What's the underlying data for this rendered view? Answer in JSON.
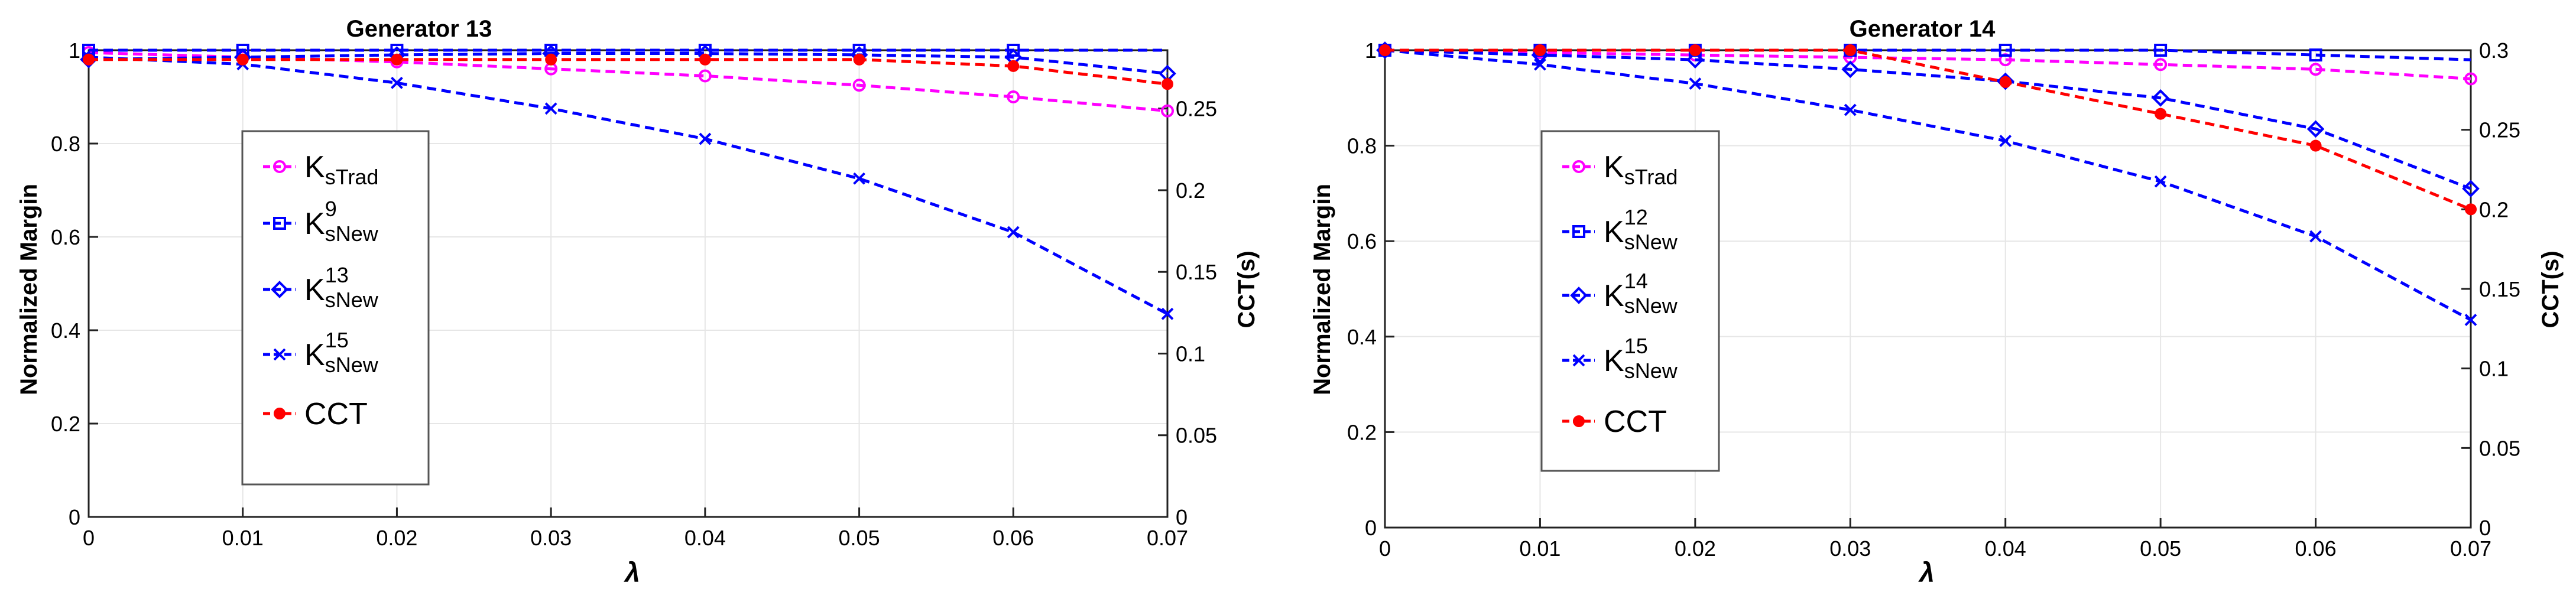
{
  "chart_data": [
    {
      "type": "line",
      "title": "Generator 13",
      "xlabel": "λ",
      "ylabel": "Normalized Margin",
      "y2label": "CCT(s)",
      "xlim": [
        0,
        0.07
      ],
      "ylim": [
        0,
        1
      ],
      "y2lim": [
        0,
        0.2857
      ],
      "x": [
        0,
        0.01,
        0.02,
        0.03,
        0.04,
        0.05,
        0.06,
        0.07
      ],
      "xticks": [
        "0",
        "0.01",
        "0.02",
        "0.03",
        "0.04",
        "0.05",
        "0.06",
        "0.07"
      ],
      "yticks": [
        "0",
        "0.2",
        "0.4",
        "0.6",
        "0.8",
        "1"
      ],
      "y2ticks": [
        "0",
        "0.05",
        "0.1",
        "0.15",
        "0.2",
        "0.25"
      ],
      "y2tick_values": [
        0,
        0.05,
        0.1,
        0.15,
        0.2,
        0.25
      ],
      "grid": true,
      "legend": "left",
      "series": [
        {
          "name": "KsTrad",
          "base": "K",
          "sub": "sTrad",
          "sup": "",
          "color": "#ff00ff",
          "marker": "circle",
          "axis": "left",
          "values": [
            0.995,
            0.985,
            0.975,
            0.96,
            0.945,
            0.925,
            0.9,
            0.87
          ]
        },
        {
          "name": "KsNew9",
          "base": "K",
          "sub": "sNew",
          "sup": "9",
          "color": "#0000ff",
          "marker": "square",
          "axis": "left",
          "values": [
            1.0,
            1.0,
            1.0,
            1.0,
            1.0,
            1.0,
            1.0,
            1.0
          ]
        },
        {
          "name": "KsNew13",
          "base": "K",
          "sub": "sNew",
          "sup": "13",
          "color": "#0000ff",
          "marker": "diamond",
          "axis": "left",
          "values": [
            0.98,
            0.985,
            0.99,
            0.993,
            0.993,
            0.99,
            0.985,
            0.95
          ]
        },
        {
          "name": "KsNew15",
          "base": "K",
          "sub": "sNew",
          "sup": "15",
          "color": "#0000ff",
          "marker": "x",
          "axis": "left",
          "values": [
            0.985,
            0.97,
            0.93,
            0.875,
            0.81,
            0.725,
            0.61,
            0.435
          ]
        },
        {
          "name": "CCT",
          "base": "CCT",
          "sub": "",
          "sup": "",
          "color": "#ff0000",
          "marker": "dot",
          "axis": "right",
          "values": [
            0.28,
            0.28,
            0.28,
            0.28,
            0.28,
            0.28,
            0.276,
            0.265
          ]
        }
      ]
    },
    {
      "type": "line",
      "title": "Generator 14",
      "xlabel": "λ",
      "ylabel": "Normalized Margin",
      "y2label": "CCT(s)",
      "xlim": [
        0,
        0.07
      ],
      "ylim": [
        0,
        1
      ],
      "y2lim": [
        0,
        0.3
      ],
      "x": [
        0,
        0.01,
        0.02,
        0.03,
        0.04,
        0.05,
        0.06,
        0.07
      ],
      "xticks": [
        "0",
        "0.01",
        "0.02",
        "0.03",
        "0.04",
        "0.05",
        "0.06",
        "0.07"
      ],
      "yticks": [
        "0",
        "0.2",
        "0.4",
        "0.6",
        "0.8",
        "1"
      ],
      "y2ticks": [
        "0",
        "0.05",
        "0.1",
        "0.15",
        "0.2",
        "0.25",
        "0.3"
      ],
      "y2tick_values": [
        0,
        0.05,
        0.1,
        0.15,
        0.2,
        0.25,
        0.3
      ],
      "grid": true,
      "legend": "left",
      "series": [
        {
          "name": "KsTrad",
          "base": "K",
          "sub": "sTrad",
          "sup": "",
          "color": "#ff00ff",
          "marker": "circle",
          "axis": "left",
          "values": [
            1.0,
            0.995,
            0.99,
            0.985,
            0.98,
            0.97,
            0.96,
            0.94
          ]
        },
        {
          "name": "KsNew12",
          "base": "K",
          "sub": "sNew",
          "sup": "12",
          "color": "#0000ff",
          "marker": "square",
          "axis": "left",
          "values": [
            1.0,
            1.0,
            1.0,
            1.0,
            1.0,
            1.0,
            0.99,
            0.98
          ]
        },
        {
          "name": "KsNew14",
          "base": "K",
          "sub": "sNew",
          "sup": "14",
          "color": "#0000ff",
          "marker": "diamond",
          "axis": "left",
          "values": [
            1.0,
            0.99,
            0.98,
            0.96,
            0.935,
            0.9,
            0.835,
            0.71
          ]
        },
        {
          "name": "KsNew15",
          "base": "K",
          "sub": "sNew",
          "sup": "15",
          "color": "#0000ff",
          "marker": "x",
          "axis": "left",
          "values": [
            1.0,
            0.97,
            0.93,
            0.875,
            0.81,
            0.725,
            0.61,
            0.435
          ]
        },
        {
          "name": "CCT",
          "base": "CCT",
          "sub": "",
          "sup": "",
          "color": "#ff0000",
          "marker": "dot",
          "axis": "right",
          "values": [
            0.3,
            0.3,
            0.3,
            0.3,
            0.28,
            0.26,
            0.24,
            0.2
          ]
        }
      ]
    }
  ]
}
